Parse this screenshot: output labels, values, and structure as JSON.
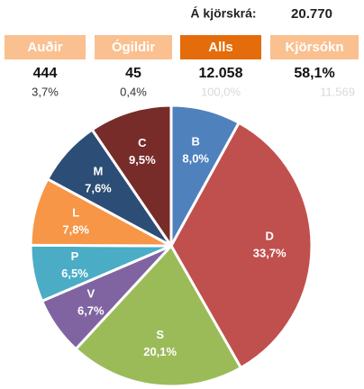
{
  "registered": {
    "label": "Á kjörskrá:",
    "value": "20.770"
  },
  "summary": [
    {
      "header": "Auðir",
      "value": "444",
      "share": "3,7%"
    },
    {
      "header": "Ógildir",
      "value": "45",
      "share": "0,4%"
    },
    {
      "header": "Alls",
      "value": "12.058",
      "share": "100,0%"
    },
    {
      "header": "Kjörsókn",
      "value": "58,1%",
      "share": "11.569"
    }
  ],
  "chart_data": {
    "type": "pie",
    "categories": [
      "B",
      "D",
      "S",
      "V",
      "P",
      "L",
      "M",
      "C"
    ],
    "values": [
      8.0,
      33.7,
      20.1,
      6.7,
      6.5,
      7.8,
      7.6,
      9.5
    ],
    "value_labels": [
      "8,0%",
      "33,7%",
      "20,1%",
      "6,7%",
      "6,5%",
      "7,8%",
      "7,6%",
      "9,5%"
    ],
    "colors": [
      "#4f81bd",
      "#c0504d",
      "#9bbb59",
      "#8064a2",
      "#4bacc6",
      "#f79646",
      "#2c4d75",
      "#772c2a"
    ]
  }
}
